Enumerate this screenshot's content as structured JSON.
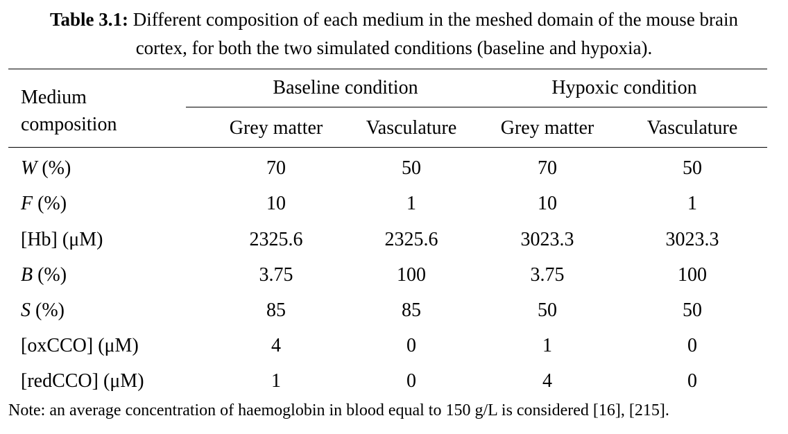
{
  "caption": {
    "label": "Table 3.1:",
    "line1": "Different composition of each medium in the meshed domain of the mouse brain",
    "line2": "cortex, for both the two simulated conditions (baseline and hypoxia)."
  },
  "header": {
    "row_label_line1": "Medium",
    "row_label_line2": "composition",
    "group_baseline": "Baseline condition",
    "group_hypoxic": "Hypoxic condition",
    "col1": "Grey matter",
    "col2": "Vasculature",
    "col3": "Grey matter",
    "col4": "Vasculature"
  },
  "rows": [
    {
      "sym": "W",
      "unit": " (%)",
      "v": [
        "70",
        "50",
        "70",
        "50"
      ]
    },
    {
      "sym": "F",
      "unit": " (%)",
      "v": [
        "10",
        "1",
        "10",
        "1"
      ]
    },
    {
      "sym": "",
      "unit": "[Hb] (μM)",
      "v": [
        "2325.6",
        "2325.6",
        "3023.3",
        "3023.3"
      ]
    },
    {
      "sym": "B",
      "unit": " (%)",
      "v": [
        "3.75",
        "100",
        "3.75",
        "100"
      ]
    },
    {
      "sym": "S",
      "unit": " (%)",
      "v": [
        "85",
        "85",
        "50",
        "50"
      ]
    },
    {
      "sym": "",
      "unit": "[oxCCO] (μM)",
      "v": [
        "4",
        "0",
        "1",
        "0"
      ]
    },
    {
      "sym": "",
      "unit": "[redCCO] (μM)",
      "v": [
        "1",
        "0",
        "4",
        "0"
      ]
    }
  ],
  "note": "Note: an average concentration of haemoglobin in blood equal to 150 g/L is considered [16], [215]."
}
